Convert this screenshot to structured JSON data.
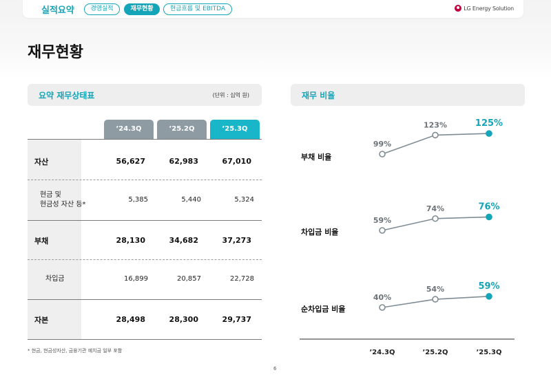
{
  "header": {
    "section": "실적요약",
    "tabs": [
      {
        "label": "경영실적",
        "active": false
      },
      {
        "label": "재무현황",
        "active": true
      },
      {
        "label": "현금흐름 및 EBITDA",
        "active": false
      }
    ],
    "logo_text": "LG Energy Solution"
  },
  "page_title": "재무현황",
  "left_panel": {
    "title": "요약 재무상태표",
    "unit": "(단위 : 십억 원)",
    "columns": [
      "’24.3Q",
      "’25.2Q",
      "’25.3Q"
    ],
    "rows": [
      {
        "label": "자산",
        "values": [
          "56,627",
          "62,983",
          "67,010"
        ]
      },
      {
        "label_line1": "현금 및",
        "label_line2": "현금성 자산 등*",
        "values": [
          "5,385",
          "5,440",
          "5,324"
        ]
      },
      {
        "label": "부채",
        "values": [
          "28,130",
          "34,682",
          "37,273"
        ]
      },
      {
        "label": "차입금",
        "values": [
          "16,899",
          "20,857",
          "22,728"
        ]
      },
      {
        "label": "자본",
        "values": [
          "28,498",
          "28,300",
          "29,737"
        ]
      }
    ],
    "footnote": "* 현금, 현금성자산, 금융기관 예치금 일부 포함"
  },
  "right_panel": {
    "title": "재무 비율"
  },
  "chart_data": {
    "type": "line",
    "x": [
      "’24.3Q",
      "’25.2Q",
      "’25.3Q"
    ],
    "series": [
      {
        "name": "부채 비율",
        "values": [
          99,
          123,
          125
        ],
        "labels": [
          "99%",
          "123%",
          "125%"
        ]
      },
      {
        "name": "차입금 비율",
        "values": [
          59,
          74,
          76
        ],
        "labels": [
          "59%",
          "74%",
          "76%"
        ]
      },
      {
        "name": "순차입금 비율",
        "values": [
          40,
          54,
          59
        ],
        "labels": [
          "40%",
          "54%",
          "59%"
        ]
      }
    ],
    "colors": {
      "line": "#7f8c94",
      "highlight": "#14a5b8",
      "label": "#6b7378"
    }
  },
  "page_number": "6",
  "colors": {
    "accent": "#14a5b8",
    "header_grey": "#8f9ba3",
    "header_teal": "#19b6c9"
  }
}
